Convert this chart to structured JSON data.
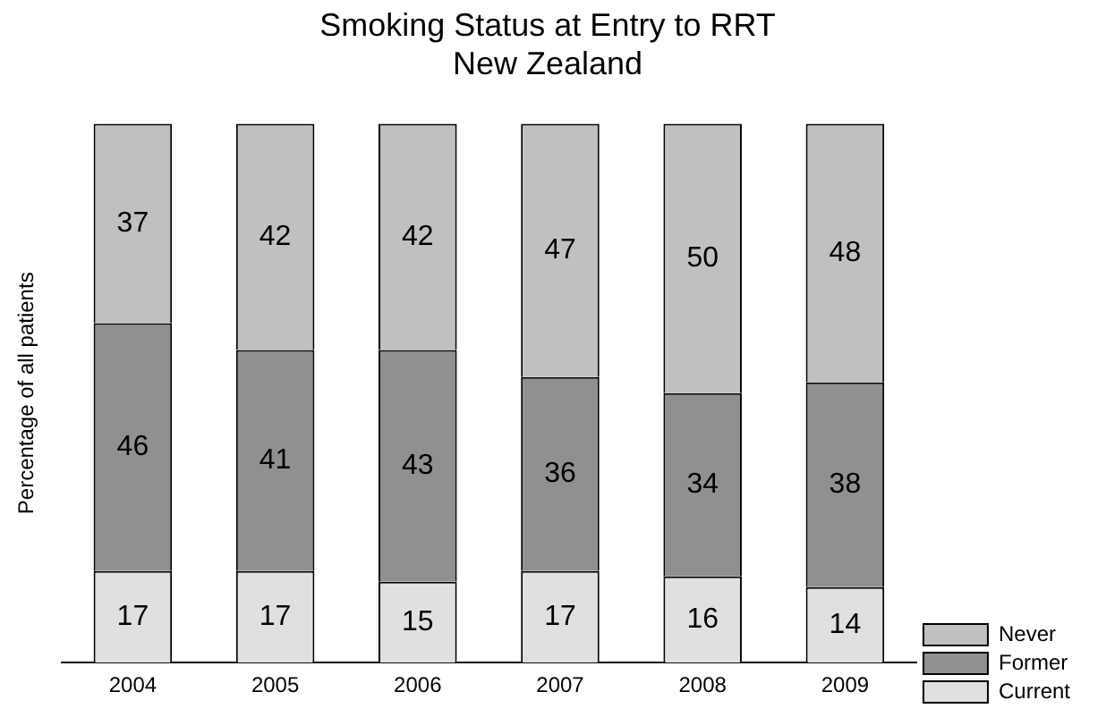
{
  "chart_data": {
    "type": "bar",
    "title": "Smoking Status at Entry to RRT",
    "subtitle": "New Zealand",
    "ylabel": "Percentage of all patients",
    "categories": [
      "2004",
      "2005",
      "2006",
      "2007",
      "2008",
      "2009"
    ],
    "series": [
      {
        "name": "Current",
        "color": "#e0e0e0",
        "values": [
          17,
          17,
          15,
          17,
          16,
          14
        ]
      },
      {
        "name": "Former",
        "color": "#909090",
        "values": [
          46,
          41,
          43,
          36,
          34,
          38
        ]
      },
      {
        "name": "Never",
        "color": "#c0c0c0",
        "values": [
          37,
          42,
          42,
          47,
          50,
          48
        ]
      }
    ],
    "stacked": true,
    "data_labels": true,
    "legend": "bottom right",
    "tick_labels": "x",
    "grid": false
  }
}
